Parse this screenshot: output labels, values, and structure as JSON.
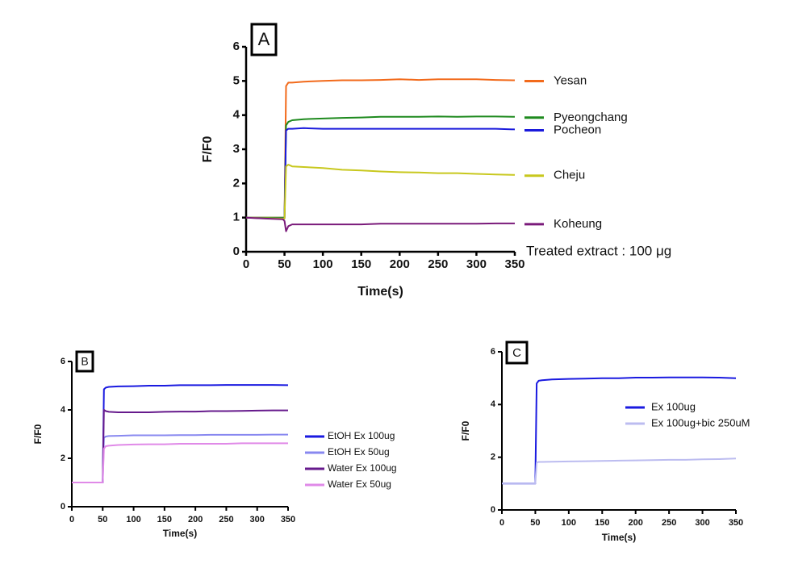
{
  "chart_data": [
    {
      "type": "line",
      "panel_label": "A",
      "ylabel": "F/F0",
      "xlabel": "Time(s)",
      "annotation": "Treated extract : 100 μg",
      "legend": "line-end",
      "xlim": [
        0,
        350
      ],
      "xticks": [
        0,
        50,
        100,
        150,
        200,
        250,
        300,
        350
      ],
      "ylim": [
        0,
        6
      ],
      "yticks": [
        0,
        1,
        2,
        3,
        4,
        5,
        6
      ],
      "x": [
        0,
        25,
        48,
        50,
        52,
        55,
        60,
        75,
        100,
        125,
        150,
        175,
        200,
        225,
        250,
        275,
        300,
        325,
        350
      ],
      "series": [
        {
          "name": "Yesan",
          "color": "#f26a1b",
          "values": [
            1,
            1,
            1,
            1,
            4.85,
            4.95,
            4.95,
            4.98,
            5,
            5.02,
            5.02,
            5.03,
            5.05,
            5.03,
            5.05,
            5.05,
            5.05,
            5.03,
            5.02
          ]
        },
        {
          "name": "Pyeongchang",
          "color": "#1e8a1e",
          "values": [
            1,
            1,
            1,
            1,
            3.7,
            3.8,
            3.85,
            3.88,
            3.9,
            3.92,
            3.93,
            3.95,
            3.95,
            3.95,
            3.96,
            3.95,
            3.96,
            3.96,
            3.95
          ]
        },
        {
          "name": "Pocheon",
          "color": "#1a1adc",
          "values": [
            1,
            0.98,
            0.97,
            0.97,
            3.55,
            3.6,
            3.6,
            3.62,
            3.6,
            3.6,
            3.6,
            3.6,
            3.6,
            3.6,
            3.6,
            3.6,
            3.6,
            3.6,
            3.58
          ]
        },
        {
          "name": "Cheju",
          "color": "#c8c81e",
          "values": [
            1,
            0.98,
            0.97,
            0.97,
            2.5,
            2.55,
            2.5,
            2.48,
            2.45,
            2.4,
            2.38,
            2.35,
            2.33,
            2.32,
            2.3,
            2.3,
            2.28,
            2.26,
            2.25
          ]
        },
        {
          "name": "Koheung",
          "color": "#7a1a7a",
          "values": [
            1,
            0.97,
            0.95,
            0.9,
            0.6,
            0.75,
            0.8,
            0.8,
            0.8,
            0.8,
            0.8,
            0.82,
            0.82,
            0.82,
            0.82,
            0.82,
            0.82,
            0.83,
            0.83
          ]
        }
      ]
    },
    {
      "type": "line",
      "panel_label": "B",
      "ylabel": "F/F0",
      "xlabel": "Time(s)",
      "legend": "right",
      "xlim": [
        0,
        350
      ],
      "xticks": [
        0,
        50,
        100,
        150,
        200,
        250,
        300,
        350
      ],
      "ylim": [
        0,
        6
      ],
      "yticks": [
        0,
        2,
        4,
        6
      ],
      "x": [
        0,
        25,
        48,
        50,
        52,
        55,
        60,
        75,
        100,
        125,
        150,
        175,
        200,
        225,
        250,
        275,
        300,
        325,
        350
      ],
      "series": [
        {
          "name": "EtOH Ex 100ug",
          "color": "#1a1ae0",
          "values": [
            1,
            1,
            1,
            1,
            4.85,
            4.92,
            4.95,
            4.97,
            4.98,
            5,
            5,
            5.02,
            5.02,
            5.02,
            5.03,
            5.03,
            5.03,
            5.03,
            5.02
          ]
        },
        {
          "name": "EtOH Ex 50ug",
          "color": "#8888f0",
          "values": [
            1,
            1,
            1,
            1,
            2.85,
            2.9,
            2.92,
            2.93,
            2.95,
            2.95,
            2.95,
            2.96,
            2.96,
            2.97,
            2.97,
            2.97,
            2.97,
            2.98,
            2.98
          ]
        },
        {
          "name": "Water Ex 100ug",
          "color": "#661a8c",
          "values": [
            1,
            1,
            1,
            1,
            4,
            3.95,
            3.92,
            3.9,
            3.9,
            3.9,
            3.92,
            3.93,
            3.93,
            3.95,
            3.95,
            3.96,
            3.97,
            3.98,
            3.98
          ]
        },
        {
          "name": "Water Ex 50ug",
          "color": "#e08ae8",
          "values": [
            1,
            1,
            1,
            1,
            2.4,
            2.5,
            2.52,
            2.55,
            2.57,
            2.58,
            2.58,
            2.6,
            2.6,
            2.6,
            2.6,
            2.62,
            2.62,
            2.62,
            2.62
          ]
        }
      ]
    },
    {
      "type": "line",
      "panel_label": "C",
      "ylabel": "F/F0",
      "xlabel": "Time(s)",
      "legend": "inside",
      "xlim": [
        0,
        350
      ],
      "xticks": [
        0,
        50,
        100,
        150,
        200,
        250,
        300,
        350
      ],
      "ylim": [
        0,
        6
      ],
      "yticks": [
        0,
        2,
        4,
        6
      ],
      "x": [
        0,
        25,
        48,
        50,
        52,
        55,
        60,
        75,
        100,
        125,
        150,
        175,
        200,
        225,
        250,
        275,
        300,
        325,
        350
      ],
      "series": [
        {
          "name": "Ex 100ug",
          "color": "#1a1ae0",
          "values": [
            1,
            1,
            1,
            1,
            4.8,
            4.9,
            4.92,
            4.95,
            4.97,
            4.98,
            5,
            5,
            5.02,
            5.02,
            5.03,
            5.03,
            5.03,
            5.02,
            5
          ]
        },
        {
          "name": "Ex 100ug+bic 250uM",
          "color": "#bcbcf0",
          "values": [
            1,
            1,
            1,
            1,
            1.8,
            1.82,
            1.82,
            1.83,
            1.84,
            1.85,
            1.86,
            1.87,
            1.88,
            1.89,
            1.9,
            1.9,
            1.92,
            1.93,
            1.95
          ]
        }
      ]
    }
  ]
}
